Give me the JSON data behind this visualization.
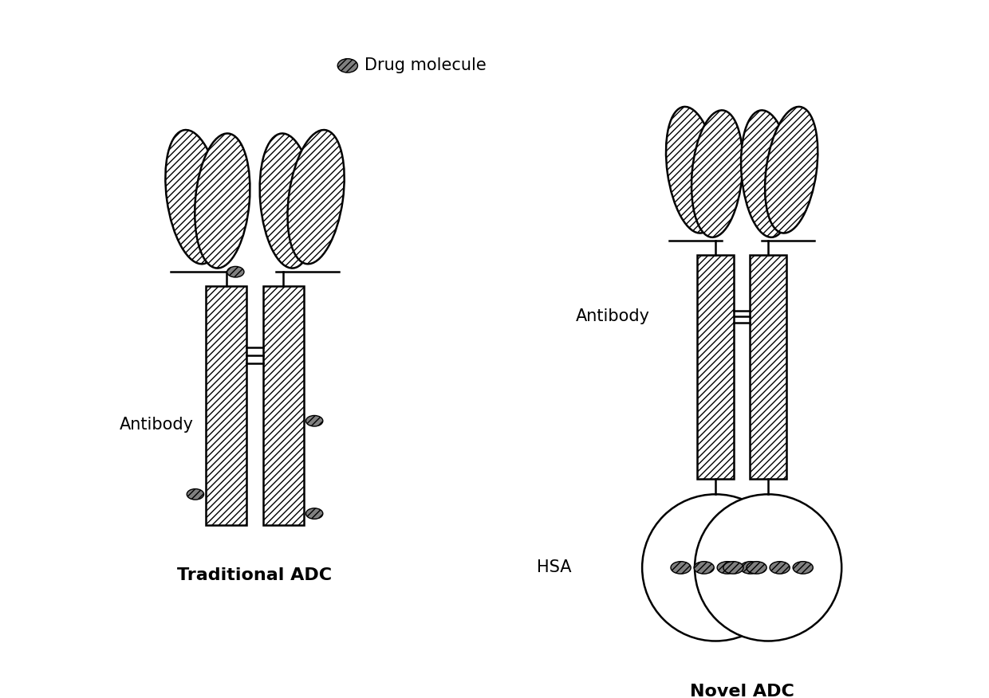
{
  "background_color": "#ffffff",
  "line_color": "#000000",
  "drug_molecule_color": "#808080",
  "text_color": "#000000",
  "legend_text": "Drug molecule",
  "label_traditional": "Traditional ADC",
  "label_novel": "Novel ADC",
  "label_antibody_trad": "Antibody",
  "label_antibody_novel": "Antibody",
  "label_hsa": "HSA",
  "figsize": [
    12.4,
    8.76
  ],
  "dpi": 100
}
